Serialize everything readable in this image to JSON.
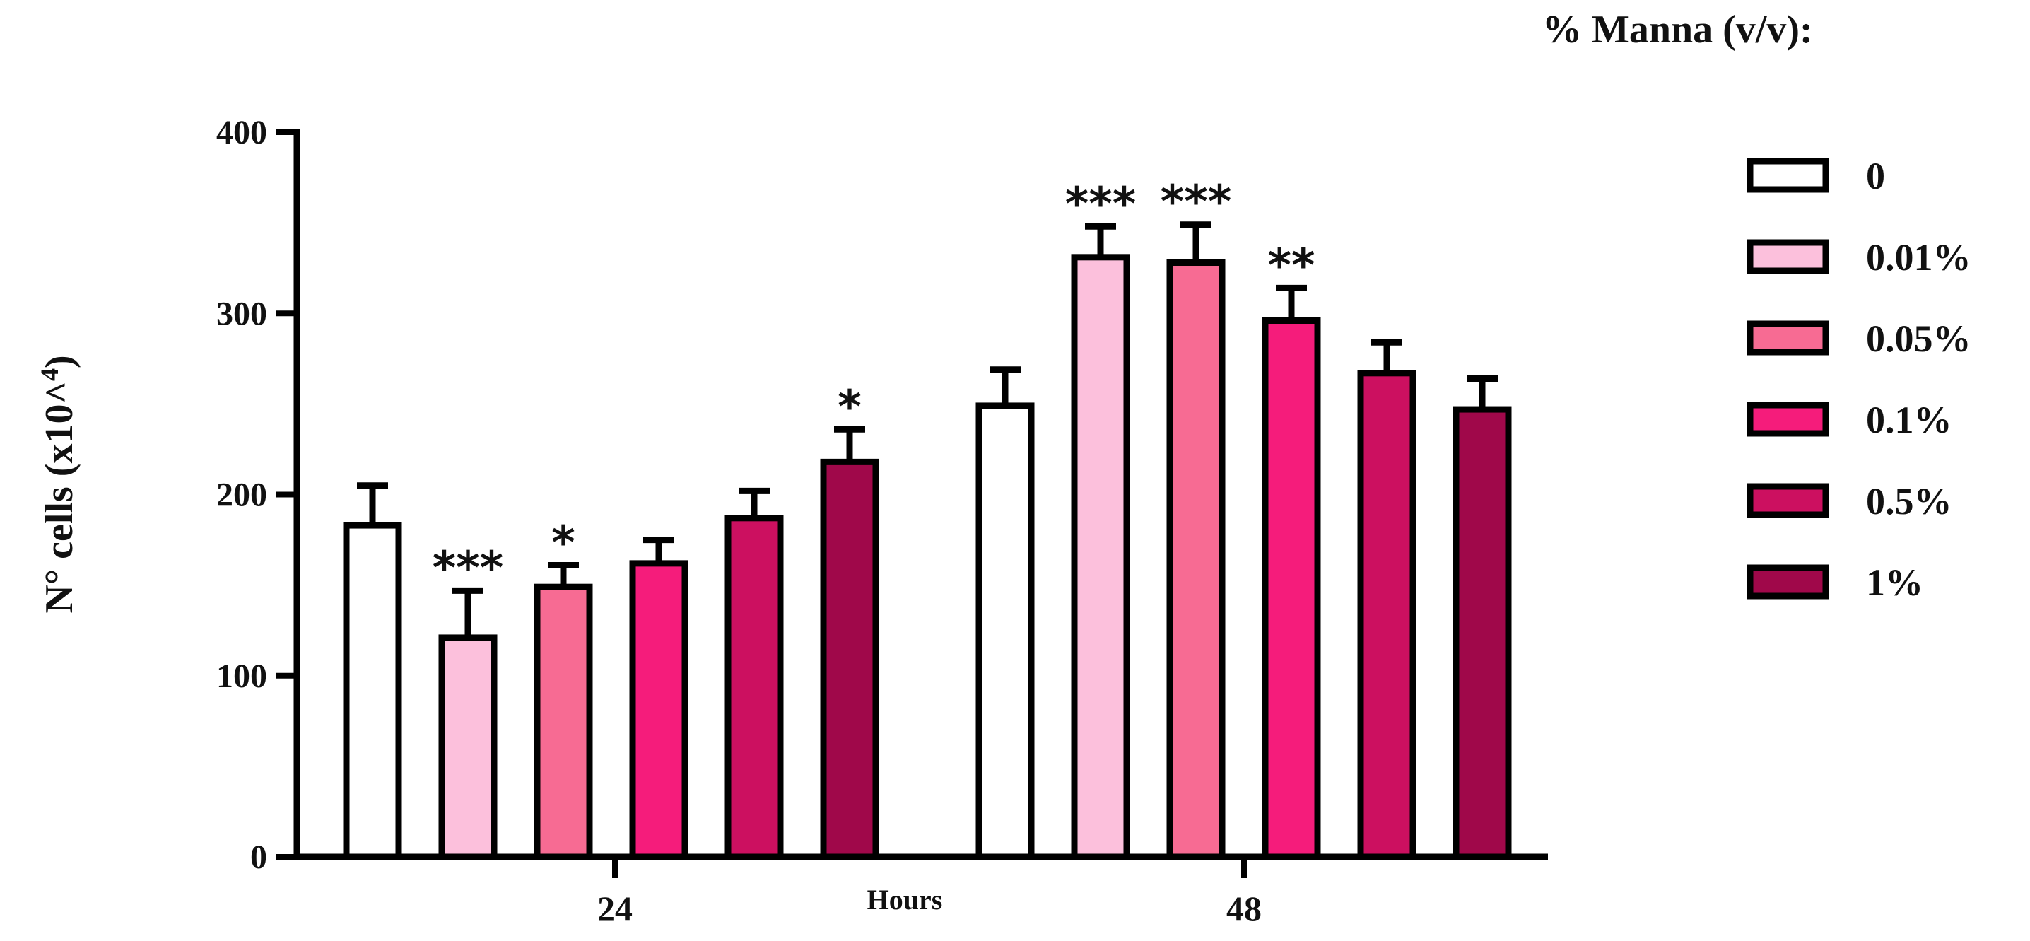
{
  "chart_data": {
    "type": "bar",
    "xlabel": "Hours",
    "ylabel": "N° cells (x10^4)",
    "ylabel_main": "N° cells (x10^",
    "ylabel_sup": "4",
    "ylabel_end": ")",
    "ylim": [
      0,
      400
    ],
    "yticks": [
      "0",
      "100",
      "200",
      "300",
      "400"
    ],
    "categories": [
      "24",
      "48"
    ],
    "legend": {
      "title": "% Manna (v/v):",
      "placement": "right"
    },
    "series": [
      {
        "name": "0",
        "color": "#ffffff",
        "values": [
          183,
          249
        ],
        "errors": [
          22,
          20
        ],
        "sig": [
          "",
          ""
        ]
      },
      {
        "name": "0.01%",
        "color": "#fcc0dc",
        "values": [
          121,
          331
        ],
        "errors": [
          26,
          17
        ],
        "sig": [
          "***",
          "***"
        ]
      },
      {
        "name": "0.05%",
        "color": "#f76b93",
        "values": [
          149,
          328
        ],
        "errors": [
          12,
          21
        ],
        "sig": [
          "*",
          "***"
        ]
      },
      {
        "name": "0.1%",
        "color": "#f51c7b",
        "values": [
          162,
          296
        ],
        "errors": [
          13,
          18
        ],
        "sig": [
          "",
          "**"
        ]
      },
      {
        "name": "0.5%",
        "color": "#cc1060",
        "values": [
          187,
          267
        ],
        "errors": [
          15,
          17
        ],
        "sig": [
          "",
          ""
        ]
      },
      {
        "name": "1%",
        "color": "#a0084a",
        "values": [
          218,
          247
        ],
        "errors": [
          18,
          17
        ],
        "sig": [
          "*",
          ""
        ]
      }
    ],
    "grid": false
  }
}
